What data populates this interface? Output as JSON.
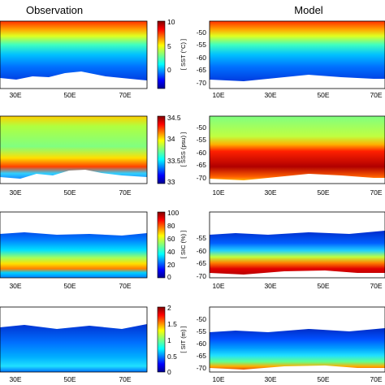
{
  "titles": {
    "left": "Observation",
    "right": "Model"
  },
  "chart_data": [
    {
      "type": "heatmap",
      "rows": [
        {
          "variable": "SST",
          "colorbar": {
            "label": "[ SST (°C) ]",
            "ticks": [
              "10",
              "5",
              "0"
            ],
            "range": [
              -2,
              10
            ]
          },
          "observation": {
            "x_ticks": [
              "30E",
              "50E",
              "70E"
            ]
          },
          "model": {
            "x_ticks": [
              "10E",
              "30E",
              "50E",
              "70E"
            ],
            "y_ticks": [
              "-50",
              "-55",
              "-60",
              "-65",
              "-70"
            ]
          }
        },
        {
          "variable": "SSS",
          "colorbar": {
            "label": "[ SSS (psu) ]",
            "ticks": [
              "34.5",
              "34",
              "33.5",
              "33"
            ],
            "range": [
              33,
              34.5
            ]
          },
          "observation": {
            "x_ticks": [
              "30E",
              "50E",
              "70E"
            ]
          },
          "model": {
            "x_ticks": [
              "10E",
              "30E",
              "50E",
              "70E"
            ],
            "y_ticks": [
              "-50",
              "-55",
              "-60",
              "-65",
              "-70"
            ]
          }
        },
        {
          "variable": "SIC",
          "colorbar": {
            "label": "[ SIC (%) ]",
            "ticks": [
              "100",
              "80",
              "60",
              "40",
              "20",
              "0"
            ],
            "range": [
              0,
              100
            ]
          },
          "observation": {
            "x_ticks": [
              "30E",
              "50E",
              "70E"
            ]
          },
          "model": {
            "x_ticks": [
              "10E",
              "30E",
              "50E",
              "70E"
            ],
            "y_ticks": [
              "-55",
              "-60",
              "-65",
              "-70"
            ]
          }
        },
        {
          "variable": "SIT",
          "colorbar": {
            "label": "[ SIT (m) ]",
            "ticks": [
              "2",
              "1.5",
              "1",
              "0.5",
              "0"
            ],
            "range": [
              0,
              2
            ]
          },
          "observation": {
            "x_ticks": [
              "30E",
              "50E",
              "70E"
            ]
          },
          "model": {
            "x_ticks": [
              "10E",
              "30E",
              "50E",
              "70E"
            ],
            "y_ticks": [
              "-50",
              "-55",
              "-60",
              "-65",
              "-70"
            ]
          }
        }
      ]
    }
  ]
}
